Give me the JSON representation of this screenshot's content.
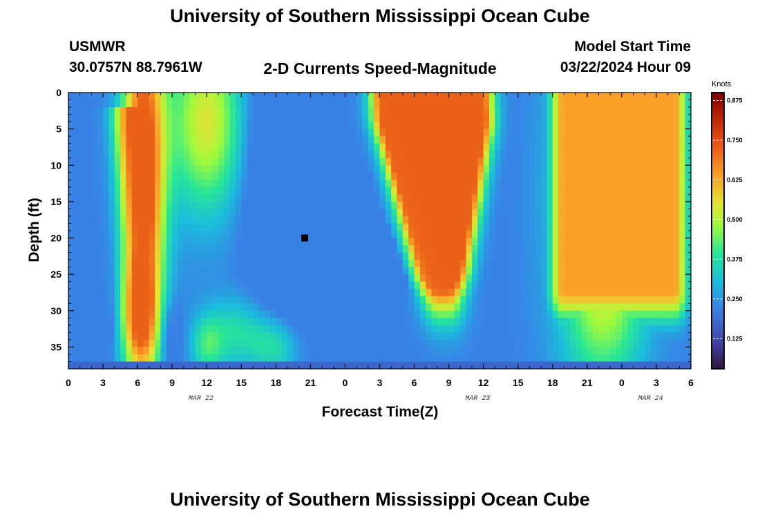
{
  "title": "University of Southern Mississippi Ocean Cube",
  "footer_title": "University of Southern Mississippi Ocean Cube",
  "station": {
    "name": "USMWR",
    "coords": "30.0757N  88.7961W"
  },
  "plot_title": "2-D Currents Speed-Magnitude",
  "model": {
    "label": "Model Start Time",
    "time": "03/22/2024 Hour 09"
  },
  "chart_data": {
    "type": "heatmap",
    "title": "2-D Currents Speed-Magnitude",
    "xlabel": "Forecast Time(Z)",
    "ylabel": "Depth (ft)",
    "x_hours_range": [
      0,
      54
    ],
    "ylim": [
      0,
      38
    ],
    "y_inverted": true,
    "x_tick_labels": [
      "0",
      "3",
      "6",
      "9",
      "12",
      "15",
      "18",
      "21",
      "0",
      "3",
      "6",
      "9",
      "12",
      "15",
      "18",
      "21",
      "0",
      "3",
      "6"
    ],
    "y_ticks": [
      0,
      5,
      10,
      15,
      20,
      25,
      30,
      35
    ],
    "y_tick_labels": [
      "0",
      "5",
      "10",
      "15",
      "20",
      "25",
      "30",
      "35"
    ],
    "date_labels": [
      {
        "text": "MAR 22",
        "hour": 11.5
      },
      {
        "text": "MAR 23",
        "hour": 35.5
      },
      {
        "text": "MAR 24",
        "hour": 50.5
      }
    ],
    "colorbar": {
      "unit": "Knots",
      "min": 0.03,
      "max": 0.9,
      "ticks": [
        0.125,
        0.25,
        0.375,
        0.5,
        0.625,
        0.75,
        0.875
      ],
      "tick_labels": [
        "0.125",
        "0.250",
        "0.375",
        "0.500",
        "0.625",
        "0.750",
        "0.875"
      ]
    },
    "field_features": [
      {
        "hour": 6.5,
        "depth": 12,
        "sh": 1.3,
        "sd": 18,
        "amp": 0.6
      },
      {
        "hour": 6.2,
        "depth": 31,
        "sh": 1.0,
        "sd": 5,
        "amp": 0.3
      },
      {
        "hour": 12.0,
        "depth": 4,
        "sh": 2.3,
        "sd": 9,
        "amp": 0.32
      },
      {
        "hour": 12.0,
        "depth": 35,
        "sh": 1.0,
        "sd": 3,
        "amp": 0.15
      },
      {
        "hour": 18.0,
        "depth": 35,
        "sh": 1.5,
        "sd": 3,
        "amp": 0.15
      },
      {
        "hour": 1.5,
        "depth": 20,
        "sh": 1.0,
        "sd": 3,
        "amp": -0.15
      },
      {
        "hour": 19.0,
        "depth": 10,
        "sh": 2.2,
        "sd": 12,
        "amp": -0.22
      },
      {
        "hour": 21.0,
        "depth": 21,
        "sh": 2.5,
        "sd": 6,
        "amp": -0.12
      },
      {
        "hour": 3.0,
        "depth": 29,
        "sh": 0.6,
        "sd": 4,
        "amp": -0.18
      },
      {
        "hour": 9.0,
        "depth": 34,
        "sh": 0.6,
        "sd": 3,
        "amp": -0.15
      },
      {
        "hour": 14.5,
        "depth": 33,
        "sh": 2.0,
        "sd": 3.5,
        "amp": 0.15
      },
      {
        "hour": 46.0,
        "depth": 14,
        "sh": 2.6,
        "sd": 18,
        "amp": 0.33
      },
      {
        "hour": 47.5,
        "depth": 30,
        "sh": 2.5,
        "sd": 6,
        "amp": 0.08
      }
    ],
    "field_ridges": [
      {
        "h0": 5.5,
        "d0": 4,
        "h1": 6.5,
        "d1": 28,
        "width": 1.1,
        "amp": 0.52
      }
    ]
  }
}
